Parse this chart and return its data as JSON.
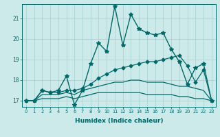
{
  "xlabel": "Humidex (Indice chaleur)",
  "background_color": "#cceaea",
  "grid_color": "#aad4d4",
  "line_color": "#006868",
  "xlim": [
    -0.5,
    23.5
  ],
  "ylim": [
    16.7,
    21.7
  ],
  "yticks": [
    17,
    18,
    19,
    20,
    21
  ],
  "xticks": [
    0,
    1,
    2,
    3,
    4,
    5,
    6,
    7,
    8,
    9,
    10,
    11,
    12,
    13,
    14,
    15,
    16,
    17,
    18,
    19,
    20,
    21,
    22,
    23
  ],
  "lines": [
    {
      "x": [
        0,
        1,
        2,
        3,
        4,
        5,
        6,
        7,
        8,
        9,
        10,
        11,
        12,
        13,
        14,
        15,
        16,
        17,
        18,
        19,
        20,
        21,
        22,
        23
      ],
      "y": [
        17.0,
        17.0,
        17.5,
        17.4,
        17.5,
        18.2,
        16.8,
        17.5,
        18.8,
        19.8,
        19.4,
        21.6,
        19.7,
        21.2,
        20.5,
        20.3,
        20.2,
        20.3,
        19.5,
        18.9,
        17.8,
        18.6,
        18.8,
        17.0
      ],
      "marker": "*",
      "markersize": 4,
      "linewidth": 1.0
    },
    {
      "x": [
        0,
        1,
        2,
        3,
        4,
        5,
        6,
        7,
        8,
        9,
        10,
        11,
        12,
        13,
        14,
        15,
        16,
        17,
        18,
        19,
        20,
        21,
        22,
        23
      ],
      "y": [
        17.0,
        17.0,
        17.5,
        17.4,
        17.4,
        17.5,
        17.5,
        17.6,
        17.8,
        18.1,
        18.3,
        18.5,
        18.6,
        18.7,
        18.8,
        18.9,
        18.9,
        19.0,
        19.1,
        19.2,
        18.7,
        17.9,
        18.5,
        17.0
      ],
      "marker": "D",
      "markersize": 2.5,
      "linewidth": 0.9
    },
    {
      "x": [
        0,
        1,
        2,
        3,
        4,
        5,
        6,
        7,
        8,
        9,
        10,
        11,
        12,
        13,
        14,
        15,
        16,
        17,
        18,
        19,
        20,
        21,
        22,
        23
      ],
      "y": [
        17.0,
        17.0,
        17.3,
        17.3,
        17.3,
        17.4,
        17.3,
        17.5,
        17.6,
        17.7,
        17.8,
        17.9,
        17.9,
        18.0,
        18.0,
        17.9,
        17.9,
        17.9,
        17.8,
        17.7,
        17.7,
        17.6,
        17.5,
        17.0
      ],
      "marker": null,
      "markersize": 0,
      "linewidth": 0.9
    },
    {
      "x": [
        0,
        1,
        2,
        3,
        4,
        5,
        6,
        7,
        8,
        9,
        10,
        11,
        12,
        13,
        14,
        15,
        16,
        17,
        18,
        19,
        20,
        21,
        22,
        23
      ],
      "y": [
        17.0,
        17.0,
        17.1,
        17.1,
        17.1,
        17.2,
        17.1,
        17.2,
        17.3,
        17.4,
        17.4,
        17.4,
        17.4,
        17.4,
        17.4,
        17.3,
        17.3,
        17.3,
        17.3,
        17.2,
        17.2,
        17.1,
        17.1,
        17.0
      ],
      "marker": null,
      "markersize": 0,
      "linewidth": 0.9
    }
  ]
}
